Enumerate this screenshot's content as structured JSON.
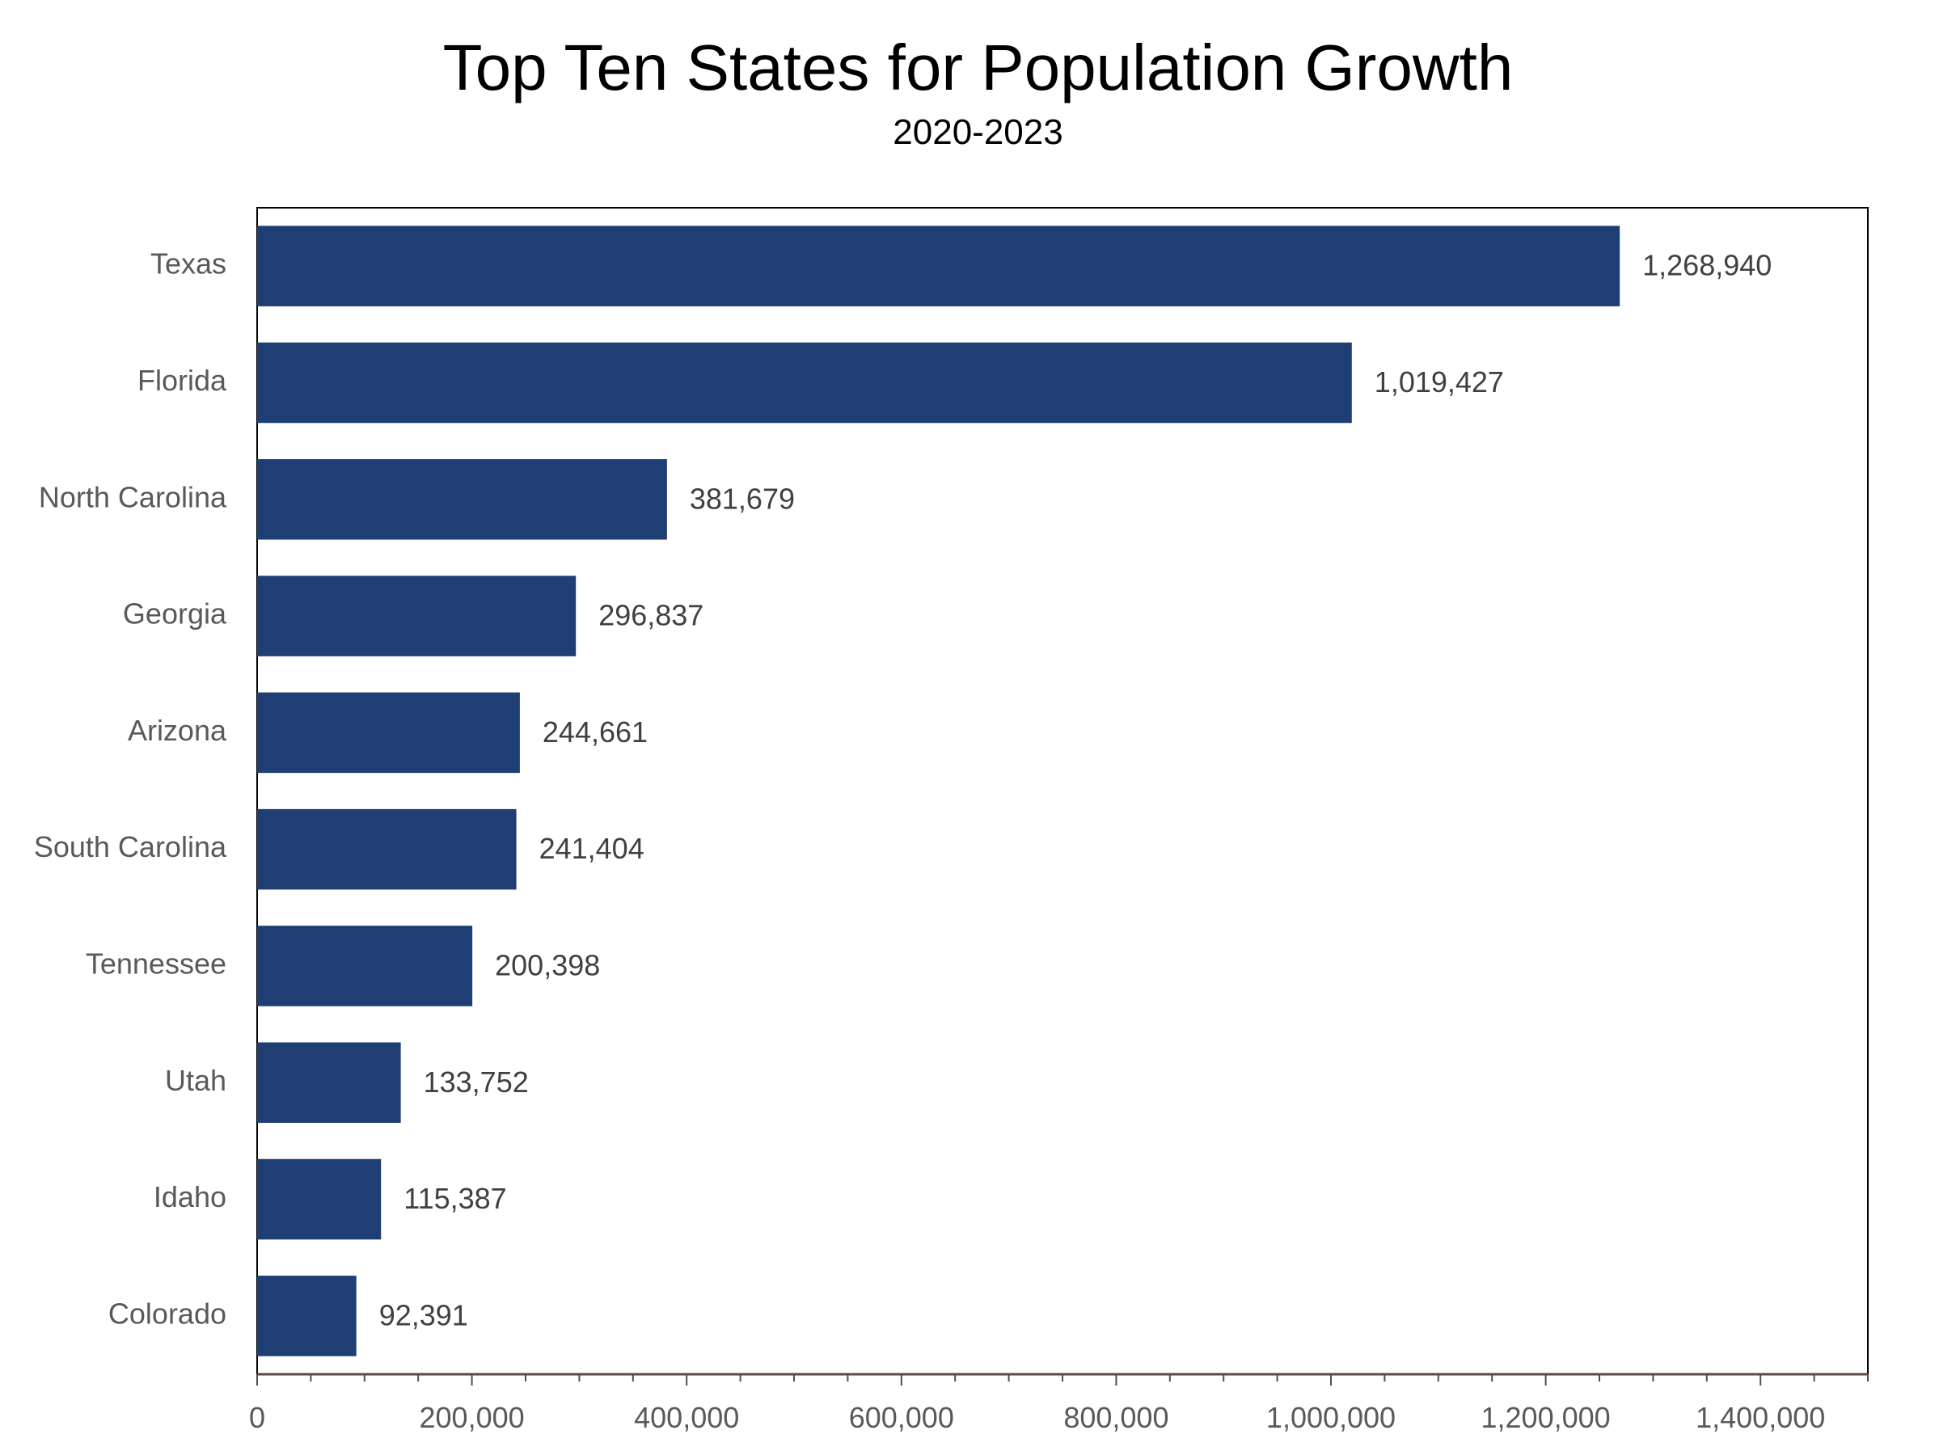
{
  "chart_data": {
    "type": "bar",
    "orientation": "horizontal",
    "title": "Top Ten States for Population Growth",
    "subtitle": "2020-2023",
    "xlabel": "",
    "ylabel": "",
    "categories": [
      "Texas",
      "Florida",
      "North Carolina",
      "Georgia",
      "Arizona",
      "South Carolina",
      "Tennessee",
      "Utah",
      "Idaho",
      "Colorado"
    ],
    "values": [
      1268940,
      1019427,
      381679,
      296837,
      244661,
      241404,
      200398,
      133752,
      115387,
      92391
    ],
    "data_labels": [
      "1,268,940",
      "1,019,427",
      "381,679",
      "296,837",
      "244,661",
      "241,404",
      "200,398",
      "133,752",
      "115,387",
      "92,391"
    ],
    "xlim": [
      0,
      1500000
    ],
    "x_ticks": [
      0,
      200000,
      400000,
      600000,
      800000,
      1000000,
      1200000,
      1400000
    ],
    "x_tick_labels": [
      "0",
      "200,000",
      "400,000",
      "600,000",
      "800,000",
      "1,000,000",
      "1,200,000",
      "1,400,000"
    ],
    "minor_tick_step": 50000,
    "grid": false,
    "legend": "none",
    "colors": {
      "bar": "#1f3f74",
      "axis": "#5a4a42",
      "frame": "#000000",
      "category_text": "#595959",
      "label_text": "#404040"
    }
  }
}
